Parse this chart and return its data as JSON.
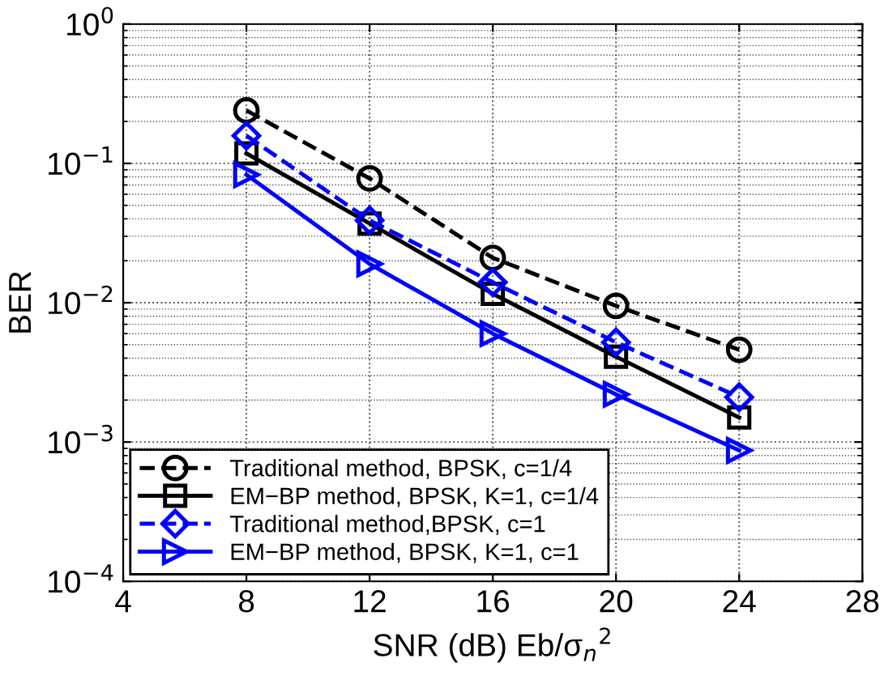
{
  "chart_data": {
    "type": "line",
    "xlabel": "SNR (dB) Eb/σ$_{n}$$^{2}$",
    "ylabel": "BER",
    "x": [
      8,
      12,
      16,
      20,
      24
    ],
    "log": "y",
    "grid": true,
    "legend": "bottom left",
    "xlim": [
      4,
      28
    ],
    "xticks": [
      4,
      8,
      12,
      16,
      20,
      24,
      28
    ],
    "ylim": [
      0.0001,
      1
    ],
    "yticks": [
      {
        "value": 0.0001,
        "label": "10$^{−4}$"
      },
      {
        "value": 0.001,
        "label": "10$^{−3}$"
      },
      {
        "value": 0.01,
        "label": "10$^{−2}$"
      },
      {
        "value": 0.1,
        "label": "10$^{−1}$"
      },
      {
        "value": 1,
        "label": "10$^{0}$"
      }
    ],
    "series": [
      {
        "name": "Traditional method, BPSK, c=1/4",
        "color": "#000000",
        "marker": "circle",
        "line_style": "dashed",
        "values": [
          0.24,
          0.078,
          0.021,
          0.0095,
          0.0046
        ]
      },
      {
        "name": "EM−BP method, BPSK, K=1, c=1/4",
        "color": "#000000",
        "marker": "square",
        "line_style": "solid",
        "values": [
          0.118,
          0.037,
          0.0116,
          0.0041,
          0.0015
        ]
      },
      {
        "name": "Traditional method,BPSK, c=1",
        "color": "#0000ff",
        "marker": "diamond",
        "line_style": "dashed",
        "values": [
          0.158,
          0.039,
          0.014,
          0.0052,
          0.0021
        ]
      },
      {
        "name": "EM−BP method, BPSK, K=1, c=1",
        "color": "#0000ff",
        "marker": "triangle",
        "line_style": "solid",
        "values": [
          0.083,
          0.019,
          0.006,
          0.0022,
          0.00087
        ]
      }
    ]
  }
}
